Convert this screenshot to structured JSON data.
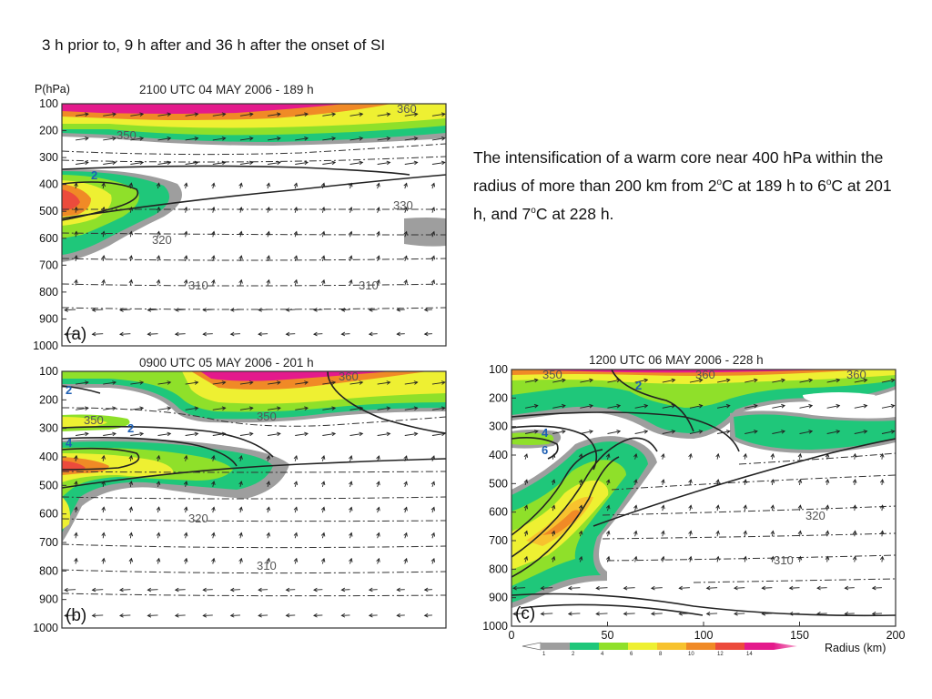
{
  "heading": "3 h prior to, 9 h after and 36 h after the onset of SI",
  "description": {
    "t1": "The intensification of a warm core near 400 hPa within the radius of more than 200 km from 2",
    "s1": "o",
    "t2": "C at 189 h to 6",
    "s2": "o",
    "t3": "C at 201 h, and 7",
    "s3": "o",
    "t4": "C at 228 h."
  },
  "axis": {
    "ylabel": "P(hPa)",
    "xlabel": "Radius (km)",
    "y_ticks": [
      "100",
      "200",
      "300",
      "400",
      "500",
      "600",
      "700",
      "800",
      "900",
      "1000"
    ],
    "x_ticks": [
      "0",
      "50",
      "100",
      "150",
      "200"
    ]
  },
  "colorbar": {
    "labels": [
      "1",
      "2",
      "4",
      "6",
      "8",
      "10",
      "12",
      "14"
    ],
    "colors": [
      "#9e9e9e",
      "#1fc77a",
      "#8fe02a",
      "#eef032",
      "#f7c22e",
      "#f08a26",
      "#ec4b3c",
      "#e41a8c"
    ]
  },
  "chart_data": [
    {
      "type": "heatmap",
      "title": "2100 UTC 04 MAY 2006 - 189 h",
      "panel_label": "(a)",
      "xlim": [
        0,
        200
      ],
      "ylim": [
        1000,
        100
      ],
      "theta_labels": [
        "350",
        "360",
        "320",
        "330",
        "310",
        "310"
      ],
      "warm_core_labels": [
        "2"
      ]
    },
    {
      "type": "heatmap",
      "title": "0900 UTC 05 MAY 2006 - 201 h",
      "panel_label": "(b)",
      "xlim": [
        0,
        200
      ],
      "ylim": [
        1000,
        100
      ],
      "theta_labels": [
        "350",
        "350",
        "360",
        "320",
        "310"
      ],
      "warm_core_labels": [
        "2",
        "2",
        "4"
      ]
    },
    {
      "type": "heatmap",
      "title": "1200 UTC 06 MAY 2006 - 228 h",
      "panel_label": "(c)",
      "xlim": [
        0,
        200
      ],
      "ylim": [
        1000,
        100
      ],
      "theta_labels": [
        "350",
        "360",
        "360",
        "320",
        "310"
      ],
      "warm_core_labels": [
        "2",
        "4",
        "6"
      ]
    }
  ]
}
